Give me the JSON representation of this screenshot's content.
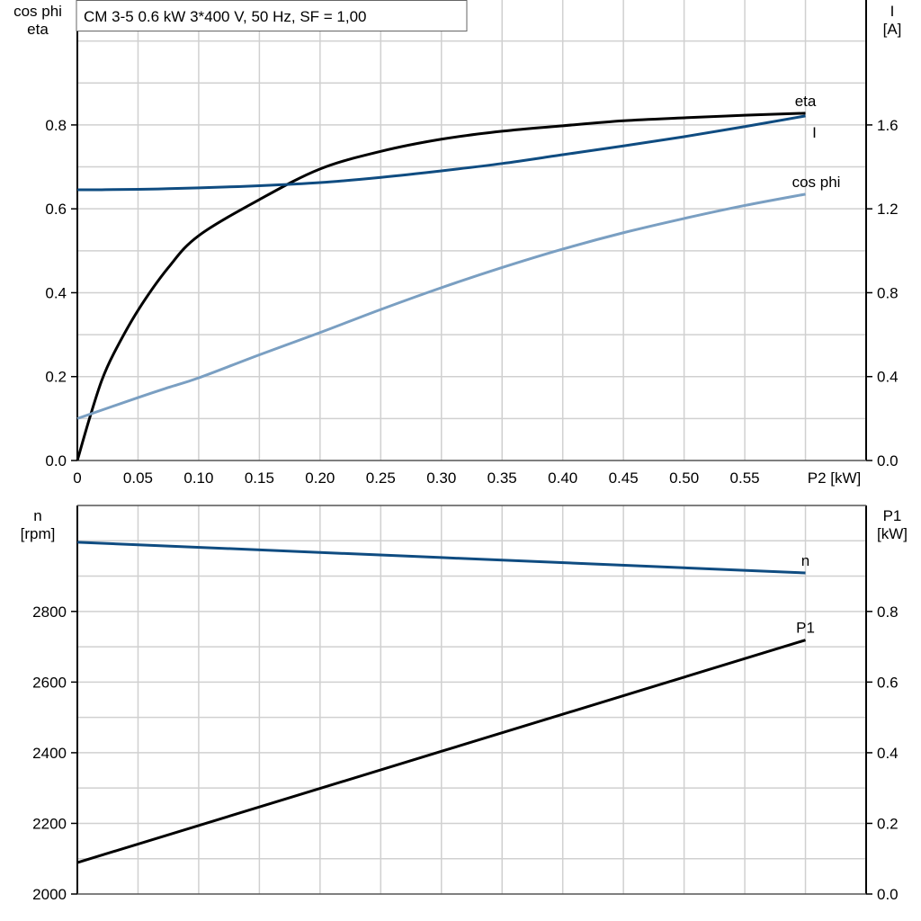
{
  "title": "CM 3-5   0.6 kW   3*400 V, 50 Hz, SF = 1,00",
  "chart_data": [
    {
      "type": "line",
      "xlabel": "P2 [kW]",
      "ylabel_left": [
        "cos phi",
        "eta"
      ],
      "ylabel_right": [
        "I",
        "[A]"
      ],
      "xlim": [
        0,
        0.65
      ],
      "ylim_left": [
        0,
        1.1
      ],
      "ylim_right": [
        0,
        2.2
      ],
      "grid": true,
      "x_ticks": [
        "0",
        "0.05",
        "0.10",
        "0.15",
        "0.20",
        "0.25",
        "0.30",
        "0.35",
        "0.40",
        "0.45",
        "0.50",
        "0.55"
      ],
      "y_ticks_left": [
        "0.0",
        "0.2",
        "0.4",
        "0.6",
        "0.8"
      ],
      "y_ticks_right": [
        "0.0",
        "0.4",
        "0.8",
        "1.2",
        "1.6"
      ],
      "x": [
        0,
        0.01,
        0.02,
        0.03,
        0.05,
        0.075,
        0.1,
        0.15,
        0.2,
        0.25,
        0.3,
        0.35,
        0.4,
        0.45,
        0.5,
        0.55,
        0.6
      ],
      "series": [
        {
          "name": "eta",
          "axis": "left",
          "color": "#000000",
          "values": [
            0,
            0.1,
            0.19,
            0.255,
            0.358,
            0.46,
            0.536,
            0.622,
            0.695,
            0.737,
            0.766,
            0.785,
            0.798,
            0.81,
            0.817,
            0.823,
            0.828
          ]
        },
        {
          "name": "I",
          "axis": "right",
          "color": "#0f4c81",
          "values": [
            1.291,
            1.291,
            1.291,
            1.292,
            1.293,
            1.296,
            1.3,
            1.31,
            1.325,
            1.35,
            1.381,
            1.416,
            1.458,
            1.5,
            1.544,
            1.592,
            1.643
          ]
        },
        {
          "name": "cos phi",
          "axis": "left",
          "color": "#7a9fc2",
          "values": [
            0.1,
            0.12,
            0.14,
            0.16,
            0.15,
            0.174,
            0.197,
            0.252,
            0.305,
            0.36,
            0.412,
            0.46,
            0.504,
            0.543,
            0.577,
            0.608,
            0.635
          ]
        }
      ]
    },
    {
      "type": "line",
      "ylabel_left": [
        "n",
        "[rpm]"
      ],
      "ylabel_right": [
        "P1",
        "[kW]"
      ],
      "xlim": [
        0,
        0.65
      ],
      "ylim_left": [
        2000,
        3100
      ],
      "ylim_right": [
        0,
        1.1
      ],
      "grid": true,
      "y_ticks_left": [
        "2000",
        "2200",
        "2400",
        "2600",
        "2800"
      ],
      "y_ticks_right": [
        "0.0",
        "0.2",
        "0.4",
        "0.6",
        "0.8"
      ],
      "x": [
        0,
        0.6
      ],
      "series": [
        {
          "name": "n",
          "axis": "left",
          "color": "#0f4c81",
          "values": [
            2996,
            2909
          ]
        },
        {
          "name": "P1",
          "axis": "right",
          "color": "#000000",
          "values": [
            0.089,
            0.719
          ]
        }
      ]
    }
  ]
}
